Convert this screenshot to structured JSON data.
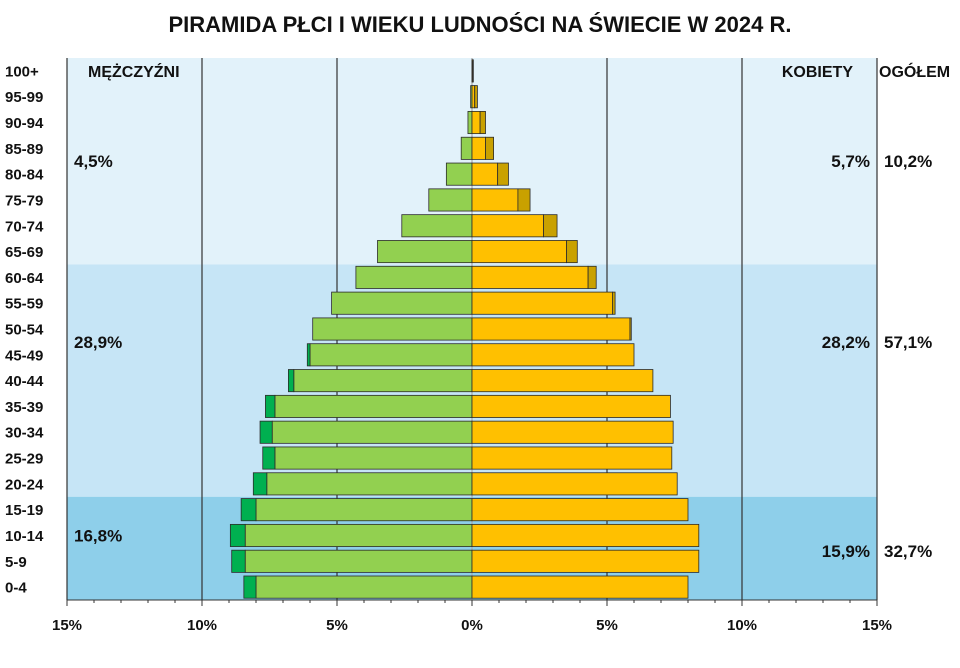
{
  "chart_data": {
    "type": "bar",
    "title": "PIRAMIDA PŁCI I WIEKU LUDNOŚCI NA ŚWIECIE W 2024 R.",
    "left_header": "MĘŻCZYŹNI",
    "right_header": "KOBIETY",
    "total_header": "OGÓŁEM",
    "categories": [
      "100+",
      "95-99",
      "90-94",
      "85-89",
      "80-84",
      "75-79",
      "70-74",
      "65-69",
      "60-64",
      "55-59",
      "50-54",
      "45-49",
      "40-44",
      "35-39",
      "30-34",
      "25-29",
      "20-24",
      "15-19",
      "10-14",
      "5-9",
      "0-4"
    ],
    "x_ticks": [
      "15%",
      "10%",
      "5%",
      "0%",
      "5%",
      "10%",
      "15%"
    ],
    "xlim": [
      -15,
      15
    ],
    "series": [
      {
        "name": "MĘŻCZYŹNI",
        "values": [
          0.0,
          0.05,
          0.15,
          0.4,
          0.95,
          1.6,
          2.6,
          3.5,
          4.3,
          5.2,
          5.9,
          6.0,
          6.6,
          7.3,
          7.4,
          7.3,
          7.6,
          8.0,
          8.4,
          8.4,
          8.0
        ]
      },
      {
        "name": "MĘŻCZYŹNI nadwyżka",
        "values": [
          0.0,
          0.0,
          0.0,
          0.0,
          0.0,
          0.0,
          0.0,
          0.0,
          0.0,
          0.0,
          0.0,
          0.1,
          0.2,
          0.35,
          0.45,
          0.45,
          0.5,
          0.55,
          0.55,
          0.5,
          0.45
        ]
      },
      {
        "name": "KOBIETY",
        "values": [
          0.02,
          0.1,
          0.3,
          0.5,
          0.95,
          1.7,
          2.65,
          3.5,
          4.3,
          5.2,
          5.85,
          6.0,
          6.7,
          7.35,
          7.45,
          7.4,
          7.6,
          8.0,
          8.4,
          8.4,
          8.0
        ]
      },
      {
        "name": "KOBIETY nadwyżka",
        "values": [
          0.03,
          0.1,
          0.2,
          0.3,
          0.4,
          0.45,
          0.5,
          0.4,
          0.3,
          0.1,
          0.05,
          0.0,
          0.0,
          0.0,
          0.0,
          0.0,
          0.0,
          0.0,
          0.0,
          0.0,
          0.0
        ]
      }
    ],
    "groups": [
      {
        "name": "65+",
        "men_share": "4,5%",
        "women_share": "5,7%",
        "total_share": "10,2%",
        "band_color": "#e2f2fa"
      },
      {
        "name": "15-64",
        "men_share": "28,9%",
        "women_share": "28,2%",
        "total_share": "57,1%",
        "band_color": "#c6e5f6"
      },
      {
        "name": "0-14",
        "men_share": "16,8%",
        "women_share": "15,9%",
        "total_share": "32,7%",
        "band_color": "#8ecfea"
      }
    ],
    "colors": {
      "men": "#92d050",
      "men_excess": "#00b050",
      "women": "#ffc000",
      "women_excess": "#c9a100",
      "grid": "#333333",
      "center_line": "#aaaaaa"
    },
    "grid": true
  }
}
